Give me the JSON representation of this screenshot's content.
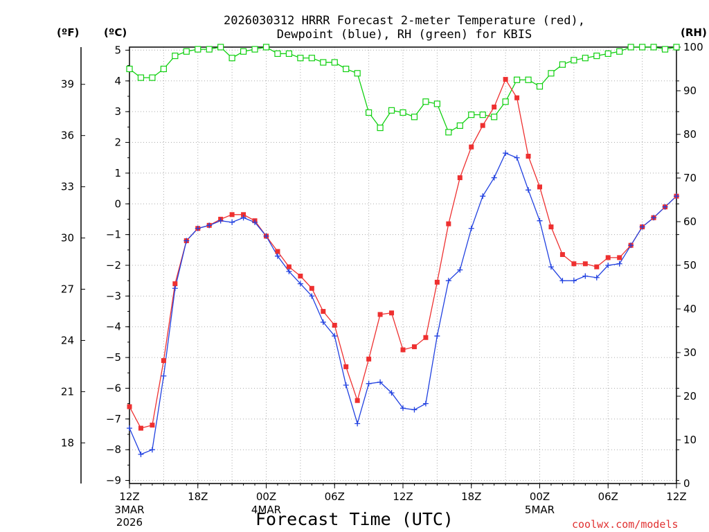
{
  "chart_data": {
    "type": "line",
    "title_line1": "2026030312 HRRR Forecast 2-meter Temperature (red),",
    "title_line2": "Dewpoint (blue), RH (green) for KBIS",
    "xlabel": "Forecast Time (UTC)",
    "credit": "coolwx.com/models",
    "unit_f": "(ºF)",
    "unit_c": "(ºC)",
    "unit_rh": "(RH)",
    "x_tick_labels": [
      "12Z",
      "18Z",
      "00Z",
      "06Z",
      "12Z",
      "18Z",
      "00Z",
      "06Z",
      "12Z"
    ],
    "x_date_labels": [
      {
        "label": "3MAR",
        "year": "2026",
        "at_hour": 0
      },
      {
        "label": "4MAR",
        "year": "",
        "at_hour": 12
      },
      {
        "label": "5MAR",
        "year": "",
        "at_hour": 36
      }
    ],
    "x_range_hours": [
      0,
      48
    ],
    "x_axis_start": "2026-03-03 12Z",
    "y_left_c_ticks": [
      5,
      4,
      3,
      2,
      1,
      0,
      -1,
      -2,
      -3,
      -4,
      -5,
      -6,
      -7,
      -8,
      -9
    ],
    "y_left_c_tick_labels": [
      "5",
      "4",
      "3",
      "2",
      "1",
      "0",
      "−1",
      "−2",
      "−3",
      "−4",
      "−5",
      "−6",
      "−7",
      "−8",
      "−9"
    ],
    "y_left_f_ticks": [
      39,
      36,
      33,
      30,
      27,
      24,
      21,
      18
    ],
    "y_right_rh_ticks": [
      100,
      90,
      80,
      70,
      60,
      50,
      40,
      30,
      20,
      10,
      0
    ],
    "ylim_c": [
      -9.1,
      5.1
    ],
    "ylim_rh": [
      0,
      100
    ],
    "grid": true,
    "colors": {
      "temperature": "#ee3030",
      "dewpoint": "#2040e0",
      "rh": "#10d010"
    },
    "series": [
      {
        "name": "Temperature",
        "units": "C",
        "values": [
          -6.6,
          -7.3,
          -7.2,
          -5.1,
          -2.6,
          -1.2,
          -0.8,
          -0.7,
          -0.5,
          -0.35,
          -0.35,
          -0.55,
          -1.05,
          -1.55,
          -2.05,
          -2.35,
          -2.75,
          -3.5,
          -3.95,
          -5.3,
          -6.4,
          -5.05,
          -3.6,
          -3.55,
          -4.75,
          -4.65,
          -4.35,
          -2.55,
          -0.65,
          0.85,
          1.85,
          2.55,
          3.15,
          4.05,
          3.45,
          1.55,
          0.55,
          -0.75,
          -1.65,
          -1.95,
          -1.95,
          -2.05,
          -1.75,
          -1.75,
          -1.35,
          -0.75,
          -0.45,
          -0.1,
          0.25
        ]
      },
      {
        "name": "Dewpoint",
        "units": "C",
        "values": [
          -7.3,
          -8.15,
          -8.0,
          -5.6,
          -2.75,
          -1.2,
          -0.8,
          -0.7,
          -0.55,
          -0.6,
          -0.45,
          -0.6,
          -1.05,
          -1.7,
          -2.2,
          -2.6,
          -3.0,
          -3.85,
          -4.3,
          -5.9,
          -7.15,
          -5.85,
          -5.8,
          -6.15,
          -6.65,
          -6.7,
          -6.5,
          -4.3,
          -2.5,
          -2.15,
          -0.8,
          0.25,
          0.85,
          1.65,
          1.5,
          0.45,
          -0.55,
          -2.05,
          -2.5,
          -2.5,
          -2.35,
          -2.4,
          -2.0,
          -1.95,
          -1.35,
          -0.75,
          -0.45,
          -0.1,
          0.25
        ]
      },
      {
        "name": "RH",
        "units": "%",
        "values": [
          95,
          93,
          93,
          95,
          98,
          99,
          99.5,
          99.5,
          100,
          97.5,
          99,
          99.5,
          100,
          98.5,
          98.5,
          97.5,
          97.5,
          96.5,
          96.5,
          95,
          94,
          85,
          81.5,
          85.5,
          85,
          84,
          87.5,
          87,
          80.5,
          82,
          84.5,
          84.5,
          84,
          87.5,
          92.5,
          92.5,
          91,
          94,
          96,
          97,
          97.5,
          98,
          98.5,
          99,
          100,
          100,
          100,
          99.5,
          100
        ]
      }
    ]
  }
}
